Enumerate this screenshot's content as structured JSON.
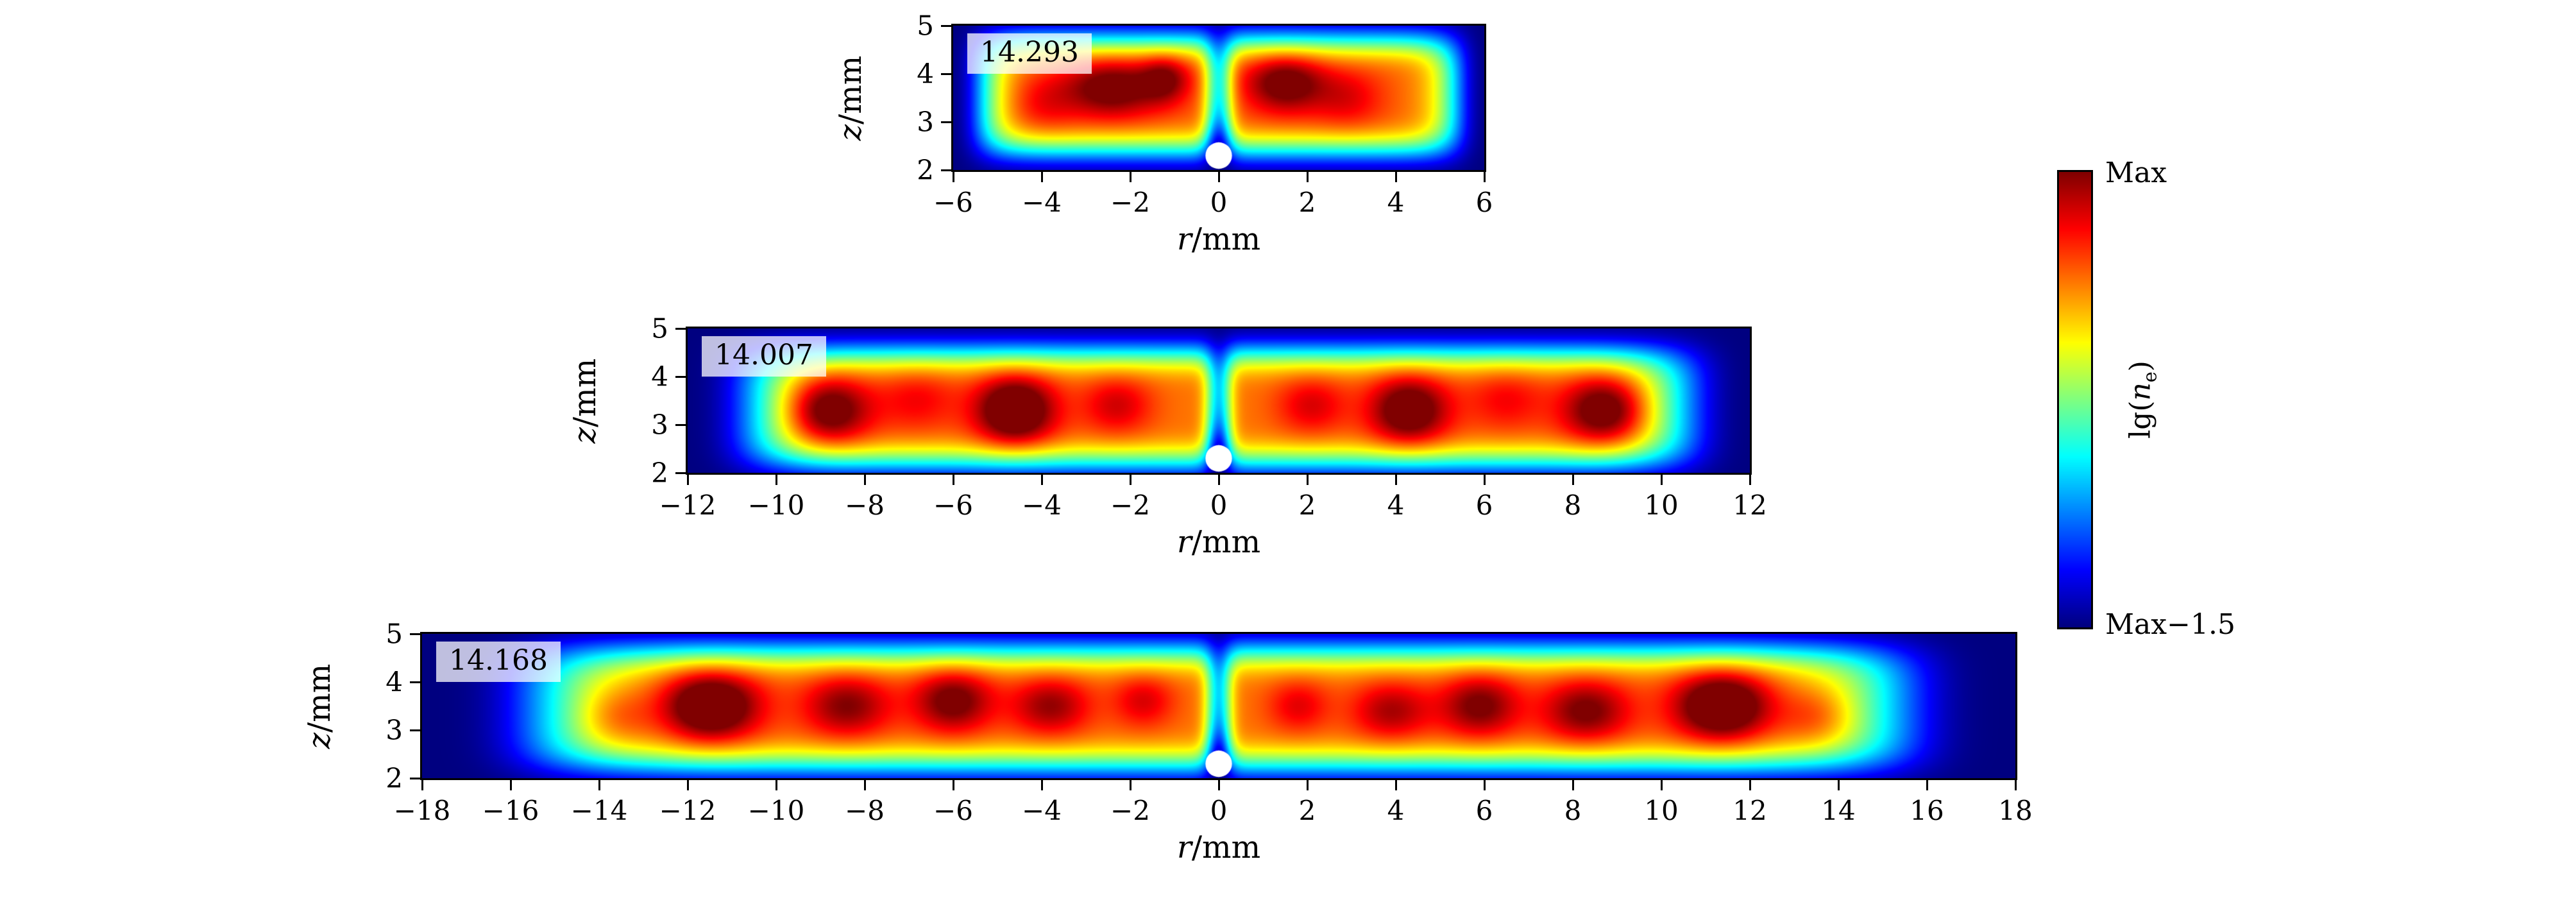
{
  "figure": {
    "background": "#ffffff",
    "colorbar": {
      "top_label": "Max",
      "bottom_label": "Max−1.5",
      "title_prefix": "lg(",
      "title_var": "n",
      "title_sub": "e",
      "title_suffix": ")",
      "colormap": "jet"
    }
  },
  "chart_data": {
    "type": "heatmap",
    "description": "Three stacked r-z maps of logarithmic electron density lg(n_e), jet colormap spanning from Max down to Max−1.5 (1.5 decades). Each panel is annotated with its peak value. A white circular obstacle sits at r=0 near z=2 and a narrow low-density channel runs vertically at r=0.",
    "panels": [
      {
        "tag": "14.293",
        "xlabel_var": "r",
        "xlabel_rest": "/mm",
        "ylabel_var": "z",
        "ylabel_rest": "/mm",
        "r_min": -6,
        "r_max": 6,
        "z_min": 2,
        "z_max": 5,
        "x_ticks": [
          -6,
          -4,
          -2,
          0,
          2,
          4,
          6
        ],
        "x_tick_labels": [
          "−6",
          "−4",
          "−2",
          "0",
          "2",
          "4",
          "6"
        ],
        "y_ticks": [
          2,
          3,
          4,
          5
        ],
        "y_tick_labels": [
          "2",
          "3",
          "4",
          "5"
        ],
        "field": {
          "base": 0.78,
          "r_flat": 5.4,
          "r_pow": 14,
          "z_center": 3.55,
          "z_sigma": 1.25,
          "z_pow": 4,
          "notch": {
            "width": 0.32,
            "a0": 0.5,
            "a1": 0.48,
            "z0": 2.1,
            "sz": 0.8
          },
          "cores": [
            [
              -2.4,
              3.7,
              0.28,
              1.1,
              0.6
            ],
            [
              -1.2,
              3.9,
              0.2,
              0.55,
              0.5
            ],
            [
              1.5,
              3.8,
              0.28,
              0.9,
              0.6
            ],
            [
              2.9,
              3.5,
              0.12,
              0.8,
              0.6
            ],
            [
              -4.0,
              3.4,
              0.1,
              0.8,
              0.6
            ]
          ],
          "circle": {
            "r": 0,
            "z": 2.3,
            "radius": 0.3
          }
        }
      },
      {
        "tag": "14.007",
        "xlabel_var": "r",
        "xlabel_rest": "/mm",
        "ylabel_var": "z",
        "ylabel_rest": "/mm",
        "r_min": -12,
        "r_max": 12,
        "z_min": 2,
        "z_max": 5,
        "x_ticks": [
          -12,
          -10,
          -8,
          -6,
          -4,
          -2,
          0,
          2,
          4,
          6,
          8,
          10,
          12
        ],
        "x_tick_labels": [
          "−12",
          "−10",
          "−8",
          "−6",
          "−4",
          "−2",
          "0",
          "2",
          "4",
          "6",
          "8",
          "10",
          "12"
        ],
        "y_ticks": [
          2,
          3,
          4,
          5
        ],
        "y_tick_labels": [
          "2",
          "3",
          "4",
          "5"
        ],
        "field": {
          "base": 0.76,
          "r_flat": 10.6,
          "r_pow": 14,
          "z_center": 3.35,
          "z_sigma": 1.25,
          "z_pow": 4,
          "notch": {
            "width": 0.3,
            "a0": 0.55,
            "a1": 0.43,
            "z0": 2.1,
            "sz": 0.8
          },
          "cores": [
            [
              -8.9,
              3.3,
              0.38,
              1.0,
              0.7
            ],
            [
              -4.6,
              3.3,
              0.4,
              0.9,
              0.7
            ],
            [
              -6.8,
              3.5,
              0.12,
              0.9,
              0.65
            ],
            [
              -2.3,
              3.4,
              0.16,
              0.8,
              0.6
            ],
            [
              4.3,
              3.3,
              0.34,
              0.9,
              0.7
            ],
            [
              8.8,
              3.3,
              0.38,
              1.0,
              0.7
            ],
            [
              6.5,
              3.5,
              0.12,
              0.9,
              0.65
            ],
            [
              2.1,
              3.4,
              0.15,
              0.8,
              0.6
            ]
          ],
          "circle": {
            "r": 0,
            "z": 2.3,
            "radius": 0.3
          }
        }
      },
      {
        "tag": "14.168",
        "xlabel_var": "r",
        "xlabel_rest": "/mm",
        "ylabel_var": "z",
        "ylabel_rest": "/mm",
        "r_min": -18,
        "r_max": 18,
        "z_min": 2,
        "z_max": 5,
        "x_ticks": [
          -18,
          -16,
          -14,
          -12,
          -10,
          -8,
          -6,
          -4,
          -2,
          0,
          2,
          4,
          6,
          8,
          10,
          12,
          14,
          16,
          18
        ],
        "x_tick_labels": [
          "−18",
          "−16",
          "−14",
          "−12",
          "−10",
          "−8",
          "−6",
          "−4",
          "−2",
          "0",
          "2",
          "4",
          "6",
          "8",
          "10",
          "12",
          "14",
          "16",
          "18"
        ],
        "y_ticks": [
          2,
          3,
          4,
          5
        ],
        "y_tick_labels": [
          "2",
          "3",
          "4",
          "5"
        ],
        "field": {
          "base": 0.76,
          "r_flat": 15.4,
          "r_pow": 14,
          "z_center": 3.45,
          "z_sigma": 1.3,
          "z_pow": 4,
          "notch": {
            "width": 0.3,
            "a0": 0.55,
            "a1": 0.43,
            "z0": 2.1,
            "sz": 0.8
          },
          "cores": [
            [
              -11.5,
              3.5,
              0.42,
              1.1,
              0.7
            ],
            [
              -8.4,
              3.5,
              0.24,
              1.0,
              0.65
            ],
            [
              -6.0,
              3.6,
              0.28,
              0.9,
              0.65
            ],
            [
              -3.8,
              3.5,
              0.22,
              0.9,
              0.6
            ],
            [
              -1.7,
              3.6,
              0.15,
              0.7,
              0.55
            ],
            [
              -13.7,
              3.3,
              0.15,
              0.9,
              0.6
            ],
            [
              11.4,
              3.5,
              0.42,
              1.1,
              0.7
            ],
            [
              8.3,
              3.4,
              0.26,
              1.0,
              0.65
            ],
            [
              5.9,
              3.5,
              0.26,
              0.9,
              0.65
            ],
            [
              3.9,
              3.4,
              0.2,
              0.9,
              0.6
            ],
            [
              1.8,
              3.5,
              0.14,
              0.7,
              0.55
            ],
            [
              13.6,
              3.3,
              0.16,
              0.9,
              0.6
            ]
          ],
          "circle": {
            "r": 0,
            "z": 2.3,
            "radius": 0.3
          }
        }
      }
    ],
    "colorbar_scale": {
      "top": "Max",
      "bottom": "Max−1.5",
      "label": "lg(n_e)",
      "range_decades": 1.5
    }
  }
}
